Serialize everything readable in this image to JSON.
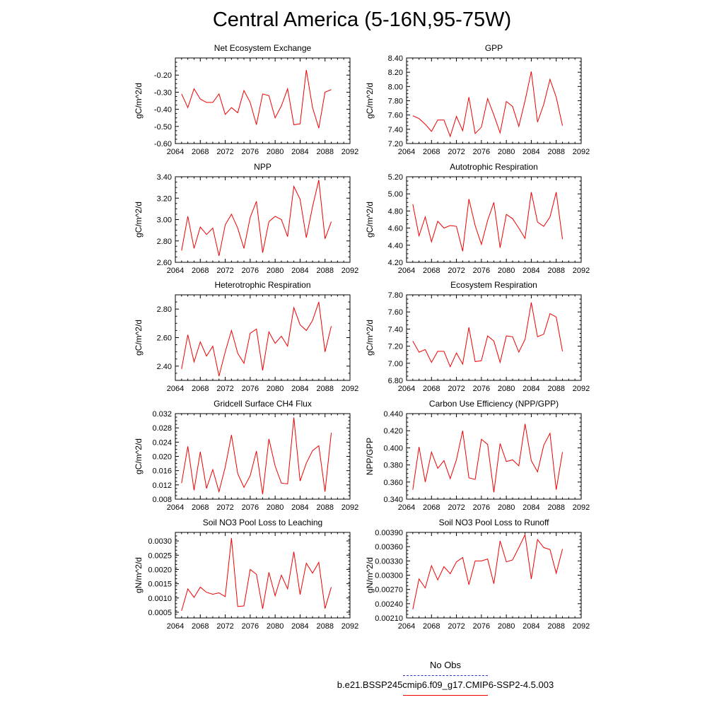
{
  "title": "Central America (5-16N,95-75W)",
  "legend": {
    "obs_label": "No Obs",
    "case_label": "b.e21.BSSP245cmip6.f09_g17.CMIP6-SSP2-4.5.003",
    "obs_color": "#3333cc",
    "case_color": "#ee0000"
  },
  "chart_data": [
    {
      "type": "line",
      "title": "Net Ecosystem Exchange",
      "ylabel": "gC/m^2/d",
      "xlim": [
        2064,
        2092
      ],
      "xticks": [
        "2064",
        "2068",
        "2072",
        "2076",
        "2080",
        "2084",
        "2088",
        "2092"
      ],
      "ylim": [
        -0.6,
        -0.1
      ],
      "yticks": [
        "-0.20",
        "-0.30",
        "-0.40",
        "-0.50",
        "-0.60"
      ],
      "x": [
        2065,
        2066,
        2067,
        2068,
        2069,
        2070,
        2071,
        2072,
        2073,
        2074,
        2075,
        2076,
        2077,
        2078,
        2079,
        2080,
        2081,
        2082,
        2083,
        2084,
        2085,
        2086,
        2087,
        2088,
        2089
      ],
      "series": [
        {
          "color": "#ee0000",
          "values": [
            -0.31,
            -0.39,
            -0.28,
            -0.34,
            -0.36,
            -0.36,
            -0.31,
            -0.43,
            -0.39,
            -0.42,
            -0.29,
            -0.36,
            -0.49,
            -0.31,
            -0.32,
            -0.45,
            -0.38,
            -0.28,
            -0.49,
            -0.485,
            -0.17,
            -0.39,
            -0.51,
            -0.3,
            -0.285
          ]
        }
      ]
    },
    {
      "type": "line",
      "title": "GPP",
      "ylabel": "gC/m^2/d",
      "xlim": [
        2064,
        2092
      ],
      "xticks": [
        "2064",
        "2068",
        "2072",
        "2076",
        "2080",
        "2084",
        "2088",
        "2092"
      ],
      "ylim": [
        7.2,
        8.4
      ],
      "yticks": [
        "8.40",
        "8.20",
        "8.00",
        "7.80",
        "7.60",
        "7.40",
        "7.20"
      ],
      "x": [
        2065,
        2066,
        2067,
        2068,
        2069,
        2070,
        2071,
        2072,
        2073,
        2074,
        2075,
        2076,
        2077,
        2078,
        2079,
        2080,
        2081,
        2082,
        2083,
        2084,
        2085,
        2086,
        2087,
        2088,
        2089
      ],
      "series": [
        {
          "color": "#ee0000",
          "values": [
            7.59,
            7.55,
            7.47,
            7.37,
            7.53,
            7.53,
            7.3,
            7.58,
            7.38,
            7.85,
            7.34,
            7.43,
            7.83,
            7.6,
            7.35,
            7.79,
            7.72,
            7.44,
            7.8,
            8.21,
            7.5,
            7.75,
            8.1,
            7.85,
            7.45
          ]
        }
      ]
    },
    {
      "type": "line",
      "title": "NPP",
      "ylabel": "gC/m^2/d",
      "xlim": [
        2064,
        2092
      ],
      "xticks": [
        "2064",
        "2068",
        "2072",
        "2076",
        "2080",
        "2084",
        "2088",
        "2092"
      ],
      "ylim": [
        2.6,
        3.4
      ],
      "yticks": [
        "3.40",
        "3.20",
        "3.00",
        "2.80",
        "2.60"
      ],
      "x": [
        2065,
        2066,
        2067,
        2068,
        2069,
        2070,
        2071,
        2072,
        2073,
        2074,
        2075,
        2076,
        2077,
        2078,
        2079,
        2080,
        2081,
        2082,
        2083,
        2084,
        2085,
        2086,
        2087,
        2088,
        2089
      ],
      "series": [
        {
          "color": "#ee0000",
          "values": [
            2.71,
            3.03,
            2.73,
            2.93,
            2.86,
            2.92,
            2.66,
            2.95,
            3.05,
            2.92,
            2.73,
            3.02,
            3.17,
            2.69,
            2.98,
            3.03,
            3.0,
            2.84,
            3.31,
            3.19,
            2.83,
            3.12,
            3.37,
            2.82,
            2.98
          ]
        }
      ]
    },
    {
      "type": "line",
      "title": "Autotrophic Respiration",
      "ylabel": "gC/m^2/d",
      "xlim": [
        2064,
        2092
      ],
      "xticks": [
        "2064",
        "2068",
        "2072",
        "2076",
        "2080",
        "2084",
        "2088",
        "2092"
      ],
      "ylim": [
        4.2,
        5.2
      ],
      "yticks": [
        "5.20",
        "5.00",
        "4.80",
        "4.60",
        "4.40",
        "4.20"
      ],
      "x": [
        2065,
        2066,
        2067,
        2068,
        2069,
        2070,
        2071,
        2072,
        2073,
        2074,
        2075,
        2076,
        2077,
        2078,
        2079,
        2080,
        2081,
        2082,
        2083,
        2084,
        2085,
        2086,
        2087,
        2088,
        2089
      ],
      "series": [
        {
          "color": "#ee0000",
          "values": [
            4.88,
            4.51,
            4.73,
            4.44,
            4.68,
            4.6,
            4.63,
            4.62,
            4.33,
            4.94,
            4.63,
            4.41,
            4.69,
            4.9,
            4.37,
            4.76,
            4.71,
            4.6,
            4.48,
            5.02,
            4.67,
            4.62,
            4.73,
            5.02,
            4.47
          ]
        }
      ]
    },
    {
      "type": "line",
      "title": "Heterotrophic Respiration",
      "ylabel": "gC/m^2/d",
      "xlim": [
        2064,
        2092
      ],
      "xticks": [
        "2064",
        "2068",
        "2072",
        "2076",
        "2080",
        "2084",
        "2088",
        "2092"
      ],
      "ylim": [
        2.3,
        2.9
      ],
      "yticks": [
        "2.80",
        "2.60",
        "2.40"
      ],
      "x": [
        2065,
        2066,
        2067,
        2068,
        2069,
        2070,
        2071,
        2072,
        2073,
        2074,
        2075,
        2076,
        2077,
        2078,
        2079,
        2080,
        2081,
        2082,
        2083,
        2084,
        2085,
        2086,
        2087,
        2088,
        2089
      ],
      "series": [
        {
          "color": "#ee0000",
          "values": [
            2.38,
            2.62,
            2.43,
            2.57,
            2.47,
            2.54,
            2.33,
            2.5,
            2.65,
            2.49,
            2.42,
            2.63,
            2.66,
            2.37,
            2.64,
            2.56,
            2.61,
            2.54,
            2.81,
            2.69,
            2.65,
            2.72,
            2.85,
            2.5,
            2.68
          ]
        }
      ]
    },
    {
      "type": "line",
      "title": "Ecosystem Respiration",
      "ylabel": "gC/m^2/d",
      "xlim": [
        2064,
        2092
      ],
      "xticks": [
        "2064",
        "2068",
        "2072",
        "2076",
        "2080",
        "2084",
        "2088",
        "2092"
      ],
      "ylim": [
        6.8,
        7.8
      ],
      "yticks": [
        "7.80",
        "7.60",
        "7.40",
        "7.20",
        "7.00",
        "6.80"
      ],
      "x": [
        2065,
        2066,
        2067,
        2068,
        2069,
        2070,
        2071,
        2072,
        2073,
        2074,
        2075,
        2076,
        2077,
        2078,
        2079,
        2080,
        2081,
        2082,
        2083,
        2084,
        2085,
        2086,
        2087,
        2088,
        2089
      ],
      "series": [
        {
          "color": "#ee0000",
          "values": [
            7.26,
            7.13,
            7.16,
            7.01,
            7.14,
            7.14,
            6.96,
            7.12,
            6.99,
            7.42,
            7.02,
            7.03,
            7.32,
            7.26,
            7.01,
            7.32,
            7.31,
            7.13,
            7.28,
            7.71,
            7.31,
            7.34,
            7.58,
            7.54,
            7.14
          ]
        }
      ]
    },
    {
      "type": "line",
      "title": "Gridcell Surface CH4 Flux",
      "ylabel": "gC/m^2/d",
      "xlim": [
        2064,
        2092
      ],
      "xticks": [
        "2064",
        "2068",
        "2072",
        "2076",
        "2080",
        "2084",
        "2088",
        "2092"
      ],
      "ylim": [
        0.008,
        0.032
      ],
      "yticks": [
        "0.032",
        "0.028",
        "0.024",
        "0.020",
        "0.016",
        "0.012",
        "0.008"
      ],
      "x": [
        2065,
        2066,
        2067,
        2068,
        2069,
        2070,
        2071,
        2072,
        2073,
        2074,
        2075,
        2076,
        2077,
        2078,
        2079,
        2080,
        2081,
        2082,
        2083,
        2084,
        2085,
        2086,
        2087,
        2088,
        2089
      ],
      "series": [
        {
          "color": "#ee0000",
          "values": [
            0.0125,
            0.0228,
            0.0105,
            0.0213,
            0.011,
            0.0163,
            0.0101,
            0.017,
            0.026,
            0.0152,
            0.0113,
            0.0146,
            0.0215,
            0.0094,
            0.0249,
            0.0173,
            0.0125,
            0.0123,
            0.0309,
            0.0131,
            0.0181,
            0.0216,
            0.023,
            0.0101,
            0.0266
          ]
        }
      ]
    },
    {
      "type": "line",
      "title": "Carbon Use Efficiency (NPP/GPP)",
      "ylabel": "NPP/GPP",
      "xlim": [
        2064,
        2092
      ],
      "xticks": [
        "2064",
        "2068",
        "2072",
        "2076",
        "2080",
        "2084",
        "2088",
        "2092"
      ],
      "ylim": [
        0.34,
        0.44
      ],
      "yticks": [
        "0.440",
        "0.420",
        "0.400",
        "0.380",
        "0.360",
        "0.340"
      ],
      "x": [
        2065,
        2066,
        2067,
        2068,
        2069,
        2070,
        2071,
        2072,
        2073,
        2074,
        2075,
        2076,
        2077,
        2078,
        2079,
        2080,
        2081,
        2082,
        2083,
        2084,
        2085,
        2086,
        2087,
        2088,
        2089
      ],
      "series": [
        {
          "color": "#ee0000",
          "values": [
            0.351,
            0.401,
            0.36,
            0.395,
            0.376,
            0.385,
            0.364,
            0.386,
            0.42,
            0.365,
            0.363,
            0.41,
            0.404,
            0.348,
            0.405,
            0.384,
            0.386,
            0.379,
            0.428,
            0.385,
            0.372,
            0.403,
            0.417,
            0.351,
            0.395
          ]
        }
      ]
    },
    {
      "type": "line",
      "title": "Soil NO3 Pool Loss to Leaching",
      "ylabel": "gN/m^2/d",
      "xlim": [
        2064,
        2092
      ],
      "xticks": [
        "2064",
        "2068",
        "2072",
        "2076",
        "2080",
        "2084",
        "2088",
        "2092"
      ],
      "ylim": [
        0.0003,
        0.0033
      ],
      "yticks": [
        "0.0030",
        "0.0025",
        "0.0020",
        "0.0015",
        "0.0010",
        "0.0005"
      ],
      "x": [
        2065,
        2066,
        2067,
        2068,
        2069,
        2070,
        2071,
        2072,
        2073,
        2074,
        2075,
        2076,
        2077,
        2078,
        2079,
        2080,
        2081,
        2082,
        2083,
        2084,
        2085,
        2086,
        2087,
        2088,
        2089
      ],
      "series": [
        {
          "color": "#ee0000",
          "values": [
            0.00055,
            0.00132,
            0.00102,
            0.00138,
            0.0012,
            0.00113,
            0.00118,
            0.00105,
            0.0031,
            0.0007,
            0.00072,
            0.002,
            0.00183,
            0.00062,
            0.0019,
            0.00108,
            0.0018,
            0.00132,
            0.00262,
            0.00112,
            0.00222,
            0.00187,
            0.00225,
            0.00063,
            0.00138
          ]
        }
      ]
    },
    {
      "type": "line",
      "title": "Soil NO3 Pool Loss to Runoff",
      "ylabel": "gN/m^2/d",
      "xlim": [
        2064,
        2092
      ],
      "xticks": [
        "2064",
        "2068",
        "2072",
        "2076",
        "2080",
        "2084",
        "2088",
        "2092"
      ],
      "ylim": [
        0.0021,
        0.0039
      ],
      "yticks": [
        "0.00390",
        "0.00360",
        "0.00330",
        "0.00300",
        "0.00270",
        "0.00240",
        "0.00210"
      ],
      "x": [
        2065,
        2066,
        2067,
        2068,
        2069,
        2070,
        2071,
        2072,
        2073,
        2074,
        2075,
        2076,
        2077,
        2078,
        2079,
        2080,
        2081,
        2082,
        2083,
        2084,
        2085,
        2086,
        2087,
        2088,
        2089
      ],
      "series": [
        {
          "color": "#ee0000",
          "values": [
            0.00228,
            0.00292,
            0.00273,
            0.0032,
            0.0029,
            0.00318,
            0.00303,
            0.00328,
            0.00337,
            0.0028,
            0.0033,
            0.0033,
            0.00334,
            0.00282,
            0.00372,
            0.00328,
            0.00332,
            0.00358,
            0.00385,
            0.00292,
            0.00375,
            0.00358,
            0.00354,
            0.00304,
            0.00355
          ]
        }
      ]
    }
  ]
}
